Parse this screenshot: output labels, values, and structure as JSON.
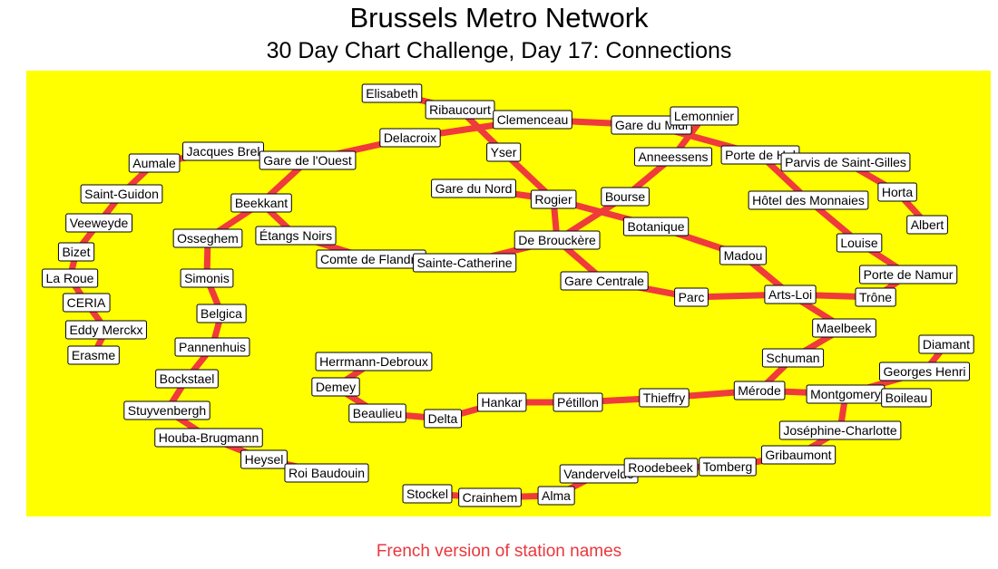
{
  "header": {
    "title": "Brussels Metro Network",
    "subtitle": "30 Day Chart Challenge, Day 17: Connections"
  },
  "caption": "French version of station names",
  "colors": {
    "panel_background": "#ffff00",
    "line": "#ef3b3b",
    "caption": "#e8383d",
    "label_fill": "#ffffff"
  },
  "stations": [
    "Elisabeth",
    "Ribaucourt",
    "Clemenceau",
    "Gare du Midi",
    "Lemonnier",
    "Jacques Brel",
    "Aumale",
    "Gare de l'Ouest",
    "Delacroix",
    "Yser",
    "Anneessens",
    "Porte de Hal",
    "Parvis de Saint-Gilles",
    "Saint-Guidon",
    "Beekkant",
    "Gare du Nord",
    "Rogier",
    "Bourse",
    "Hôtel des Monnaies",
    "Horta",
    "Veeweyde",
    "Osseghem",
    "Étangs Noirs",
    "Botanique",
    "Albert",
    "Bizet",
    "De Brouckère",
    "Louise",
    "Comte de Flandre",
    "Sainte-Catherine",
    "Madou",
    "La Roue",
    "Simonis",
    "Gare Centrale",
    "Porte de Namur",
    "CERIA",
    "Parc",
    "Arts-Loi",
    "Trône",
    "Belgica",
    "Eddy Merckx",
    "Maelbeek",
    "Pannenhuis",
    "Erasme",
    "Diamant",
    "Schuman",
    "Herrmann-Debroux",
    "Georges Henri",
    "Bockstael",
    "Demey",
    "Hankar",
    "Pétillon",
    "Thieffry",
    "Mérode",
    "Montgomery",
    "Boileau",
    "Stuyvenbergh",
    "Beaulieu",
    "Delta",
    "Joséphine-Charlotte",
    "Houba-Brugmann",
    "Gribaumont",
    "Heysel",
    "Vandervelde",
    "Roodebeek",
    "Tomberg",
    "Roi Baudouin",
    "Stockel",
    "Crainhem",
    "Alma"
  ]
}
